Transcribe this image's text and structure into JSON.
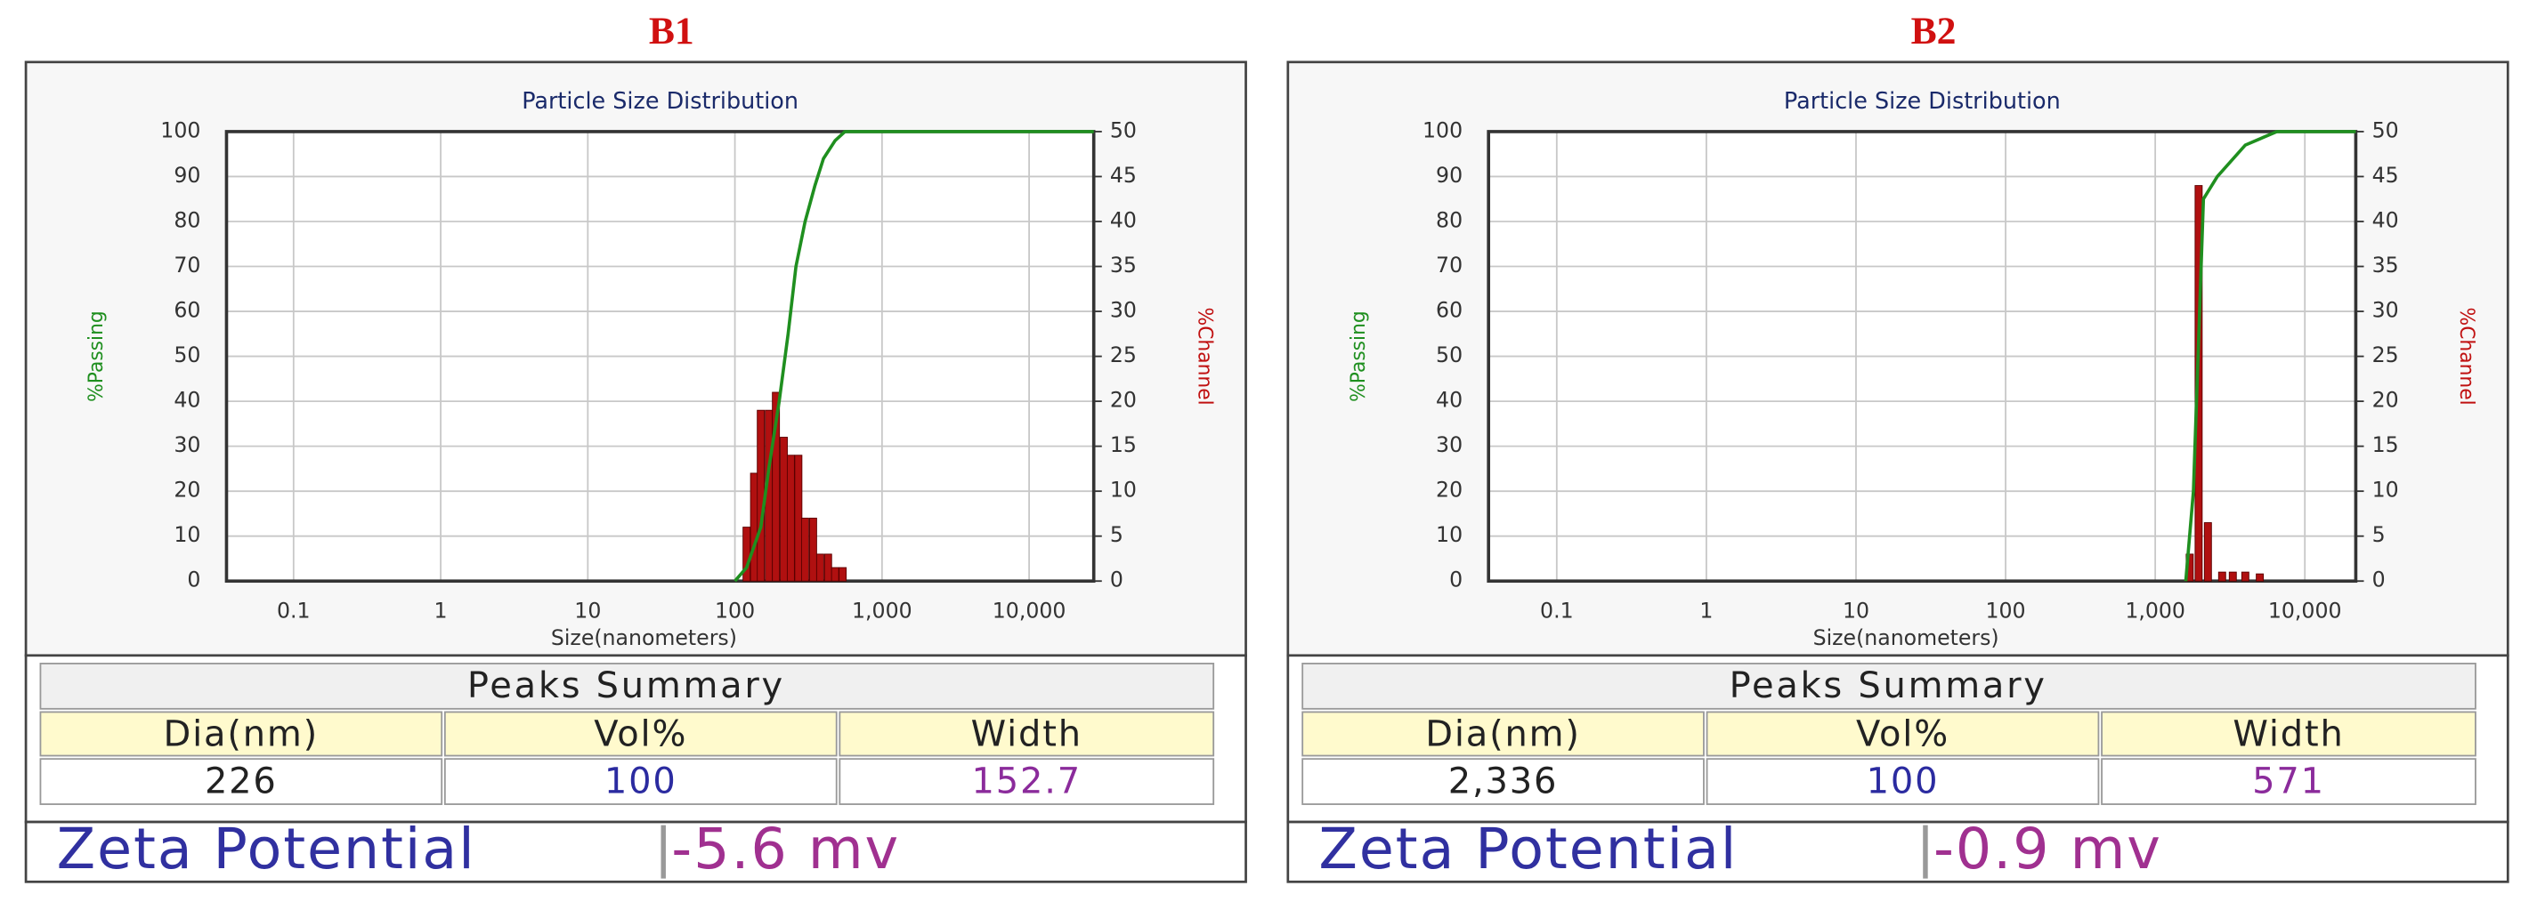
{
  "chart_data": [
    {
      "type": "combo",
      "title": "Particle Size Distribution",
      "xlabel": "Size(nanometers)",
      "ylabel": "%Passing",
      "y2label": "%Channel",
      "xscale": "log",
      "xlim": [
        0.035,
        27500
      ],
      "xticks": [
        0.1,
        1,
        10,
        100,
        {
          "value": 1000,
          "label": "1,000"
        },
        {
          "value": 10000,
          "label": "10,000"
        }
      ],
      "ylim": [
        0,
        100
      ],
      "yticks": [
        0,
        10,
        20,
        30,
        40,
        50,
        60,
        70,
        80,
        90,
        100
      ],
      "y2lim": [
        0,
        50
      ],
      "y2ticks": [
        0,
        5,
        10,
        15,
        20,
        25,
        30,
        35,
        40,
        45,
        50
      ],
      "grid": true,
      "series": [
        {
          "type": "bar",
          "axis": "y2",
          "color": "#b01010",
          "x": [
            120,
            135,
            150,
            170,
            190,
            215,
            240,
            270,
            300,
            340,
            380,
            430,
            480,
            540
          ],
          "values": [
            6,
            12,
            19,
            19,
            21,
            16,
            14,
            14,
            7,
            7,
            3,
            3,
            1.5,
            1.5
          ]
        },
        {
          "type": "line",
          "axis": "y",
          "color": "#1f8f1f",
          "x": [
            100,
            120,
            150,
            170,
            200,
            230,
            260,
            300,
            350,
            400,
            480,
            560,
            27500
          ],
          "values": [
            0,
            3,
            12,
            25,
            40,
            55,
            70,
            80,
            88,
            94,
            98,
            100,
            100
          ]
        }
      ]
    },
    {
      "type": "combo",
      "title": "Particle Size Distribution",
      "xlabel": "Size(nanometers)",
      "ylabel": "%Passing",
      "y2label": "%Channel",
      "xscale": "log",
      "xlim": [
        0.035,
        21900
      ],
      "xticks": [
        0.1,
        1,
        10,
        100,
        {
          "value": 1000,
          "label": "1,000"
        },
        {
          "value": 10000,
          "label": "10,000"
        }
      ],
      "ylim": [
        0,
        100
      ],
      "yticks": [
        0,
        10,
        20,
        30,
        40,
        50,
        60,
        70,
        80,
        90,
        100
      ],
      "y2lim": [
        0,
        50
      ],
      "y2ticks": [
        0,
        5,
        10,
        15,
        20,
        25,
        30,
        35,
        40,
        45,
        50
      ],
      "grid": true,
      "series": [
        {
          "type": "bar",
          "axis": "y2",
          "color": "#b01010",
          "x": [
            1700,
            1950,
            2250,
            2800,
            3300,
            4000,
            5000
          ],
          "values": [
            3,
            44,
            6.5,
            1,
            1,
            1,
            0.8
          ]
        },
        {
          "type": "line",
          "axis": "y",
          "color": "#1f8f1f",
          "x": [
            1600,
            1800,
            2100,
            2600,
            4000,
            6500,
            21900
          ],
          "values": [
            0,
            20,
            85,
            90,
            97,
            100,
            100
          ]
        }
      ]
    }
  ],
  "panels": [
    {
      "label": "B1",
      "peaks_summary": {
        "title": "Peaks Summary",
        "headers": [
          "Dia(nm)",
          "Vol%",
          "Width"
        ],
        "row": [
          "226",
          "100",
          "152.7"
        ]
      },
      "zeta": {
        "label": "Zeta Potential",
        "value": "-5.6 mv"
      }
    },
    {
      "label": "B2",
      "peaks_summary": {
        "title": "Peaks Summary",
        "headers": [
          "Dia(nm)",
          "Vol%",
          "Width"
        ],
        "row": [
          "2,336",
          "100",
          "571"
        ]
      },
      "zeta": {
        "label": "Zeta Potential",
        "value": "-0.9 mv"
      }
    }
  ]
}
